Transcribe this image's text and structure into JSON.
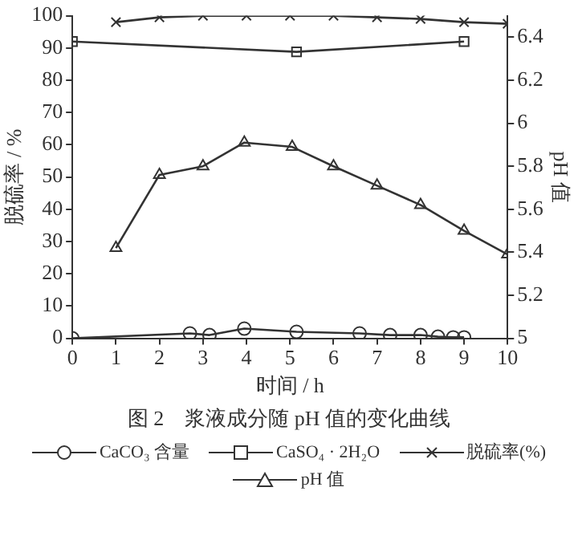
{
  "chart_data": {
    "type": "line",
    "title": "图 2　浆液成分随 pH 值的变化曲线",
    "xlabel": "时间 / h",
    "ylabel": "脱硫率 / %",
    "y2label": "pH 值",
    "xlim": [
      0,
      10
    ],
    "xticks": [
      0,
      1,
      2,
      3,
      4,
      5,
      6,
      7,
      8,
      9,
      10
    ],
    "ylim": [
      0,
      100
    ],
    "yticks": [
      0,
      10,
      20,
      30,
      40,
      50,
      60,
      70,
      80,
      90,
      100
    ],
    "y2lim": [
      5,
      6.5
    ],
    "y2ticks": [
      5,
      5.2,
      5.4,
      5.6,
      5.8,
      6,
      6.2,
      6.4
    ],
    "grid": false,
    "legend": "bottom",
    "line_style": "solid",
    "series": [
      {
        "name": "CaCO₃ 含量",
        "color": "#333333",
        "marker": "circle",
        "x": [
          0,
          2.7,
          3.15,
          3.95,
          5.15,
          6.6,
          7.3,
          8,
          8.4,
          8.75,
          9
        ],
        "values": [
          0,
          1.5,
          1,
          3,
          2,
          1.5,
          1,
          1,
          0.5,
          0.3,
          0.3
        ]
      },
      {
        "name": "CaSO₄ · 2H₂O",
        "color": "#333333",
        "marker": "square",
        "x": [
          0,
          5.15,
          9
        ],
        "values": [
          92,
          88.8,
          92
        ]
      },
      {
        "name": "脱硫率(%)",
        "color": "#333333",
        "marker": "cross",
        "x": [
          1,
          2,
          3,
          4,
          5,
          6,
          7,
          8,
          9,
          10
        ],
        "values": [
          98,
          99.5,
          100,
          100,
          100,
          100,
          99.5,
          99,
          98,
          97.5
        ]
      },
      {
        "name": "pH 值",
        "color": "#333333",
        "marker": "triangle",
        "axis": "y2",
        "x": [
          1,
          2,
          3,
          3.95,
          5.05,
          6,
          7,
          8,
          9,
          10
        ],
        "values": [
          5.42,
          5.76,
          5.8,
          5.91,
          5.89,
          5.8,
          5.71,
          5.62,
          5.5,
          5.39
        ]
      }
    ]
  }
}
